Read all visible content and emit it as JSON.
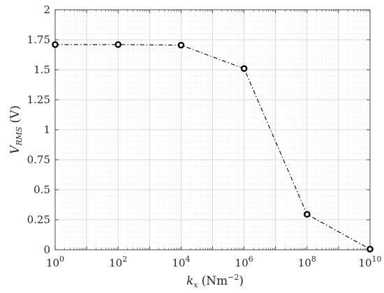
{
  "chart_data": {
    "type": "line",
    "x_scale": "log",
    "xlim": [
      1,
      10000000000
    ],
    "ylim": [
      0,
      2
    ],
    "grid": true,
    "minor_grid": true,
    "xlabel": {
      "symbol": "k",
      "subscript": "x",
      "unit": "(Nm",
      "unit_exp": "−2",
      "unit_close": ")"
    },
    "ylabel": {
      "symbol": "V",
      "subscript": "RMS",
      "unit": "(V)"
    },
    "x_ticks": [
      {
        "value": 1,
        "base": "10",
        "exp": "0"
      },
      {
        "value": 100,
        "base": "10",
        "exp": "2"
      },
      {
        "value": 10000,
        "base": "10",
        "exp": "4"
      },
      {
        "value": 1000000,
        "base": "10",
        "exp": "6"
      },
      {
        "value": 100000000,
        "base": "10",
        "exp": "8"
      },
      {
        "value": 10000000000,
        "base": "10",
        "exp": "10"
      }
    ],
    "y_ticks": [
      {
        "value": 0,
        "label": "0"
      },
      {
        "value": 0.25,
        "label": "0.25"
      },
      {
        "value": 0.5,
        "label": "0.5"
      },
      {
        "value": 0.75,
        "label": "0.75"
      },
      {
        "value": 1,
        "label": "1"
      },
      {
        "value": 1.25,
        "label": "1.25"
      },
      {
        "value": 1.5,
        "label": "1.5"
      },
      {
        "value": 1.75,
        "label": "1.75"
      },
      {
        "value": 2,
        "label": "2"
      }
    ],
    "series": [
      {
        "line_style": "dash-dot",
        "marker": "circle",
        "color": "#000000",
        "x": [
          1,
          100,
          10000,
          1000000,
          100000000,
          10000000000
        ],
        "y": [
          1.71,
          1.71,
          1.705,
          1.51,
          0.295,
          0.005
        ]
      }
    ]
  }
}
